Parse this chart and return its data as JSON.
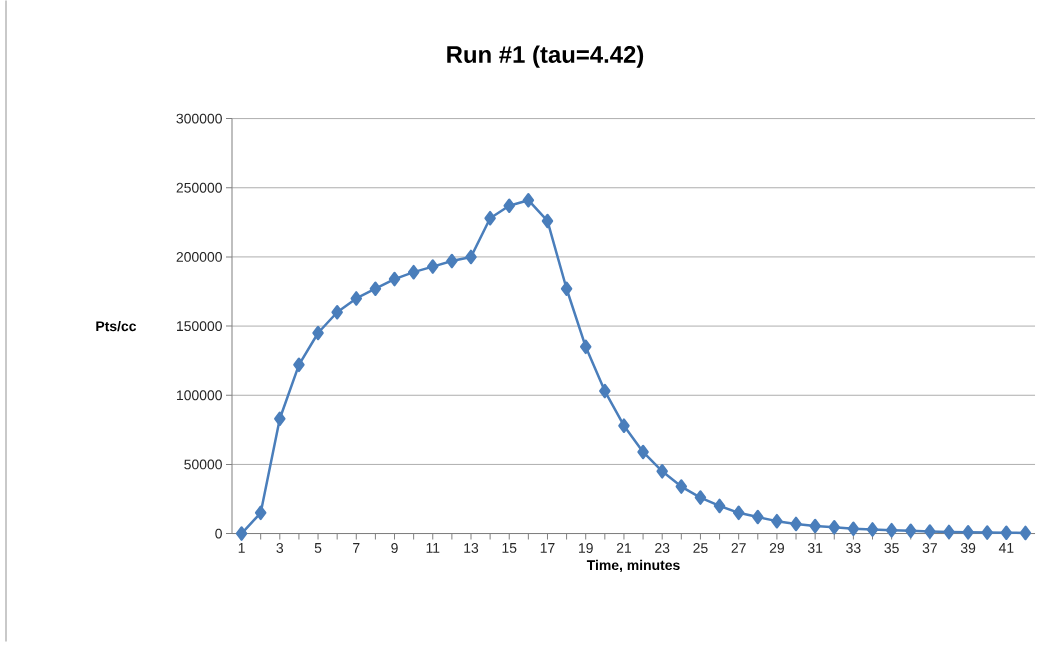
{
  "chart_data": {
    "type": "line",
    "title": "Run #1 (tau=4.42)",
    "xlabel": "Time, minutes",
    "ylabel": "Pts/cc",
    "categories": [
      "1",
      null,
      "3",
      null,
      "5",
      null,
      "7",
      null,
      "9",
      null,
      "11",
      null,
      "13",
      null,
      "15",
      null,
      "17",
      null,
      "19",
      null,
      "21",
      null,
      "23",
      null,
      "25",
      null,
      "27",
      null,
      "29",
      null,
      "31",
      null,
      "33",
      null,
      "35",
      null,
      "37",
      null,
      "39",
      null,
      "41",
      null
    ],
    "series": [
      {
        "color": "#4a7ebb",
        "values": [
          0,
          15000,
          83000,
          122000,
          145000,
          160000,
          170000,
          177000,
          184000,
          189000,
          193000,
          197000,
          200000,
          228000,
          237000,
          241000,
          226000,
          177000,
          135000,
          103000,
          78000,
          59000,
          45000,
          34000,
          26000,
          20000,
          15000,
          12000,
          9000,
          7000,
          5500,
          4500,
          3500,
          3000,
          2500,
          2000,
          1500,
          1200,
          1000,
          800,
          600,
          500
        ]
      }
    ],
    "ylim": [
      0,
      300000
    ],
    "yticks": [
      0,
      50000,
      100000,
      150000,
      200000,
      250000,
      300000
    ],
    "grid": "y",
    "marker": "diamond",
    "line_style": "solid"
  }
}
